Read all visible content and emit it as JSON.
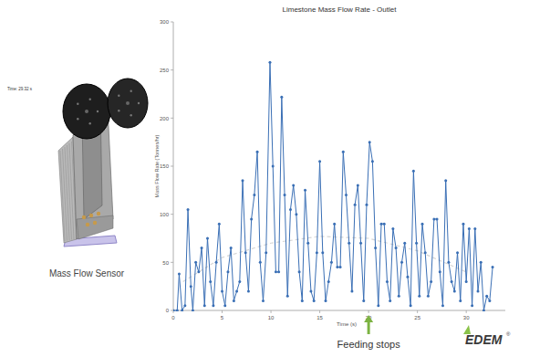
{
  "chart_data": {
    "type": "line",
    "title": "Limestone Mass Flow Rate - Outlet",
    "x_label": "Time (s)",
    "y_label": "Mass Flow Rate (Tonnes/hr)",
    "x": [
      0,
      0.4,
      0.6,
      0.9,
      1.2,
      1.5,
      1.8,
      2.0,
      2.3,
      2.6,
      2.9,
      3.2,
      3.5,
      3.8,
      4.1,
      4.4,
      4.7,
      5.0,
      5.3,
      5.6,
      5.9,
      6.2,
      6.5,
      6.8,
      7.1,
      7.4,
      7.7,
      8.0,
      8.3,
      8.6,
      8.9,
      9.2,
      9.5,
      9.9,
      10.2,
      10.5,
      10.8,
      11.1,
      11.4,
      11.7,
      12.0,
      12.3,
      12.6,
      12.9,
      13.2,
      13.5,
      13.8,
      14.1,
      14.4,
      14.7,
      15.0,
      15.3,
      15.6,
      15.9,
      16.2,
      16.5,
      16.8,
      17.1,
      17.4,
      17.7,
      18.0,
      18.3,
      18.6,
      18.9,
      19.2,
      19.5,
      19.8,
      20.1,
      20.4,
      20.7,
      21.0,
      21.3,
      21.6,
      21.9,
      22.2,
      22.5,
      22.8,
      23.1,
      23.4,
      23.7,
      24.0,
      24.3,
      24.6,
      24.9,
      25.2,
      25.5,
      25.8,
      26.1,
      26.4,
      26.7,
      27.0,
      27.3,
      27.6,
      27.9,
      28.2,
      28.5,
      28.8,
      29.1,
      29.4,
      29.7,
      30.0,
      30.3,
      30.6,
      30.9,
      31.2,
      31.5,
      31.8,
      32.1,
      32.4,
      32.7
    ],
    "series": [
      {
        "color": "#3a6fb5",
        "marker": "circle",
        "line_style": "solid",
        "values": [
          0,
          0,
          38,
          0,
          5,
          105,
          25,
          0,
          50,
          40,
          65,
          5,
          75,
          30,
          5,
          50,
          90,
          20,
          5,
          40,
          65,
          10,
          20,
          30,
          135,
          60,
          20,
          95,
          120,
          165,
          50,
          10,
          60,
          258,
          150,
          40,
          40,
          222,
          120,
          15,
          105,
          130,
          100,
          40,
          10,
          125,
          70,
          20,
          10,
          60,
          155,
          60,
          10,
          30,
          50,
          90,
          45,
          45,
          165,
          120,
          70,
          20,
          110,
          130,
          70,
          10,
          110,
          175,
          155,
          65,
          5,
          90,
          90,
          30,
          10,
          85,
          65,
          15,
          50,
          70,
          35,
          5,
          145,
          70,
          15,
          90,
          60,
          15,
          30,
          95,
          95,
          40,
          5,
          135,
          50,
          30,
          20,
          60,
          10,
          90,
          30,
          85,
          5,
          85,
          20,
          50,
          0,
          15,
          10,
          45
        ]
      },
      {
        "color": "#d6d6d6",
        "line_style": "dashed",
        "x": [
          1,
          5,
          10,
          15,
          20,
          25,
          30
        ],
        "values": [
          30,
          55,
          70,
          77,
          75,
          62,
          40
        ]
      }
    ],
    "xlim": [
      0,
      34
    ],
    "xticks": [
      0,
      5,
      10,
      15,
      20,
      25,
      30
    ],
    "ylim": [
      0,
      300
    ],
    "yticks": [
      0,
      50,
      100,
      150,
      200,
      250,
      300
    ],
    "grid": false,
    "annotations": [
      {
        "text": "Feeding stops",
        "x": 20
      }
    ]
  },
  "figure": {
    "time_label": "Time: 29.32 s",
    "caption": "Mass Flow Sensor",
    "logo": "EDEM",
    "logo_mark": "®"
  }
}
